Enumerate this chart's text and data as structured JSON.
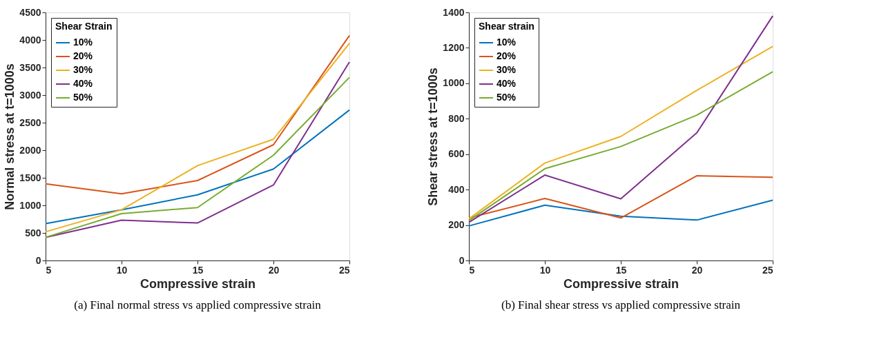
{
  "chart_data": [
    {
      "type": "line",
      "xlabel": "Compressive strain",
      "ylabel": "Normal stress at t=1000s",
      "legend_title": "Shear Strain",
      "legend": "top left",
      "grid": false,
      "marker": "none",
      "line_style": "solid",
      "x": [
        5,
        10,
        15,
        20,
        25
      ],
      "xlim": [
        5,
        25
      ],
      "xticks": [
        5,
        10,
        15,
        20,
        25
      ],
      "ylim": [
        0,
        4500
      ],
      "yticks": [
        0,
        500,
        1000,
        1500,
        2000,
        2500,
        3000,
        3500,
        4000,
        4500
      ],
      "series": [
        {
          "name": "10%",
          "color": "#0072bd",
          "values": [
            670,
            920,
            1190,
            1660,
            2730
          ]
        },
        {
          "name": "20%",
          "color": "#d95319",
          "values": [
            1390,
            1210,
            1450,
            2100,
            4080
          ]
        },
        {
          "name": "30%",
          "color": "#edb120",
          "values": [
            520,
            920,
            1720,
            2200,
            3940
          ]
        },
        {
          "name": "40%",
          "color": "#7e2f8e",
          "values": [
            420,
            730,
            680,
            1370,
            3600
          ]
        },
        {
          "name": "50%",
          "color": "#77ac30",
          "values": [
            420,
            850,
            960,
            1910,
            3320
          ]
        }
      ],
      "annotations": [
        "(a) Final normal stress vs applied compressive strain"
      ]
    },
    {
      "type": "line",
      "xlabel": "Compressive strain",
      "ylabel": "Shear stress at t=1000s",
      "legend_title": "Shear strain",
      "legend": "top left",
      "grid": false,
      "marker": "none",
      "line_style": "solid",
      "x": [
        5,
        10,
        15,
        20,
        25
      ],
      "xlim": [
        5,
        25
      ],
      "xticks": [
        5,
        10,
        15,
        20,
        25
      ],
      "ylim": [
        0,
        1400
      ],
      "yticks": [
        0,
        200,
        400,
        600,
        800,
        1000,
        1200,
        1400
      ],
      "series": [
        {
          "name": "10%",
          "color": "#0072bd",
          "values": [
            195,
            312,
            250,
            228,
            340
          ]
        },
        {
          "name": "20%",
          "color": "#d95319",
          "values": [
            240,
            350,
            240,
            478,
            470
          ]
        },
        {
          "name": "30%",
          "color": "#edb120",
          "values": [
            235,
            550,
            700,
            960,
            1208
          ]
        },
        {
          "name": "40%",
          "color": "#7e2f8e",
          "values": [
            215,
            482,
            348,
            720,
            1380
          ]
        },
        {
          "name": "50%",
          "color": "#77ac30",
          "values": [
            225,
            518,
            643,
            820,
            1065
          ]
        }
      ],
      "annotations": [
        "(b) Final shear stress vs applied compressive strain"
      ]
    }
  ]
}
